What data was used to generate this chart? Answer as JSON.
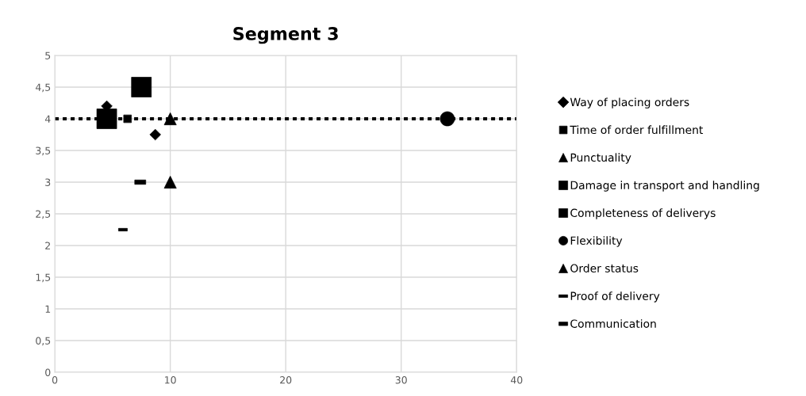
{
  "chart_data": {
    "type": "scatter",
    "title": "Segment 3",
    "series": [
      {
        "name": "Way of placing orders",
        "color": "#000000",
        "marker": "diamond",
        "x": [
          4.5,
          8.7
        ],
        "values": [
          4.2,
          3.75
        ]
      },
      {
        "name": "Time of order fulfillment",
        "color": "#000000",
        "marker": "square",
        "x": [
          6.3
        ],
        "values": [
          4.0
        ]
      },
      {
        "name": "Punctuality",
        "color": "#000000",
        "marker": "triangle",
        "x": [
          10
        ],
        "values": [
          4.0
        ]
      },
      {
        "name": "Damage in transport and handling",
        "color": "#000000",
        "marker": "square",
        "x": [
          4.5
        ],
        "values": [
          4.0
        ]
      },
      {
        "name": "Completeness of deliverys",
        "color": "#000000",
        "marker": "square",
        "x": [
          7.5
        ],
        "values": [
          4.5
        ]
      },
      {
        "name": "Flexibility",
        "color": "#000000",
        "marker": "circle",
        "x": [
          34
        ],
        "values": [
          4.0
        ]
      },
      {
        "name": "Order status",
        "color": "#000000",
        "marker": "triangle",
        "x": [
          10
        ],
        "values": [
          3.0
        ]
      },
      {
        "name": "Proof of delivery",
        "color": "#000000",
        "x": [
          5.9
        ],
        "values": [
          2.25
        ]
      },
      {
        "name": "Communication",
        "color": "#000000",
        "x": [
          7.4
        ],
        "values": [
          3.0
        ]
      }
    ],
    "xlim": [
      0,
      40
    ],
    "xticks": [
      0,
      10,
      20,
      30,
      40
    ],
    "ylim": [
      0,
      5
    ],
    "yticks": [
      0,
      {
        "value": 0.5,
        "label": "0,5"
      },
      1,
      {
        "value": 1.5,
        "label": "1,5"
      },
      2,
      {
        "value": 2.5,
        "label": "2,5"
      },
      3,
      {
        "value": 3.5,
        "label": "3,5"
      },
      4,
      {
        "value": 4.5,
        "label": "4,5"
      },
      5
    ],
    "ref_lines": [
      {
        "axis": "y",
        "value": 4,
        "color": "#000000",
        "line_style": "dotted"
      }
    ],
    "grid": true,
    "legend": "right"
  }
}
